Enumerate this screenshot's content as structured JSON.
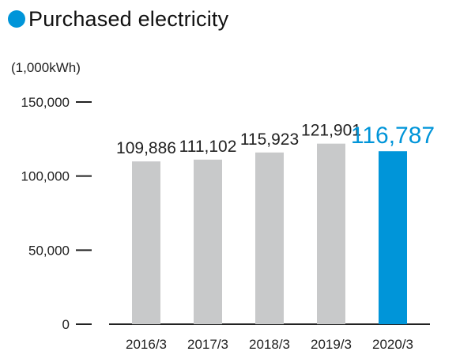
{
  "title": "Purchased electricity",
  "unit_label": "(1,000kWh)",
  "colors": {
    "accent": "#0095d9",
    "bar": "#c8c9ca",
    "axis": "#222222"
  },
  "chart_data": {
    "type": "bar",
    "title": "Purchased electricity",
    "ylabel": "(1,000kWh)",
    "xlabel": "",
    "categories": [
      "2016/3",
      "2017/3",
      "2018/3",
      "2019/3",
      "2020/3"
    ],
    "values": [
      109886,
      111102,
      115923,
      121901,
      116787
    ],
    "value_labels": [
      "109,886",
      "111,102",
      "115,923",
      "121,901",
      "116,787"
    ],
    "highlight_index": 4,
    "ylim": [
      0,
      150000
    ],
    "yticks": [
      0,
      50000,
      100000,
      150000
    ],
    "ytick_labels": [
      "0",
      "50,000",
      "100,000",
      "150,000"
    ],
    "grid": false,
    "legend": "none"
  }
}
